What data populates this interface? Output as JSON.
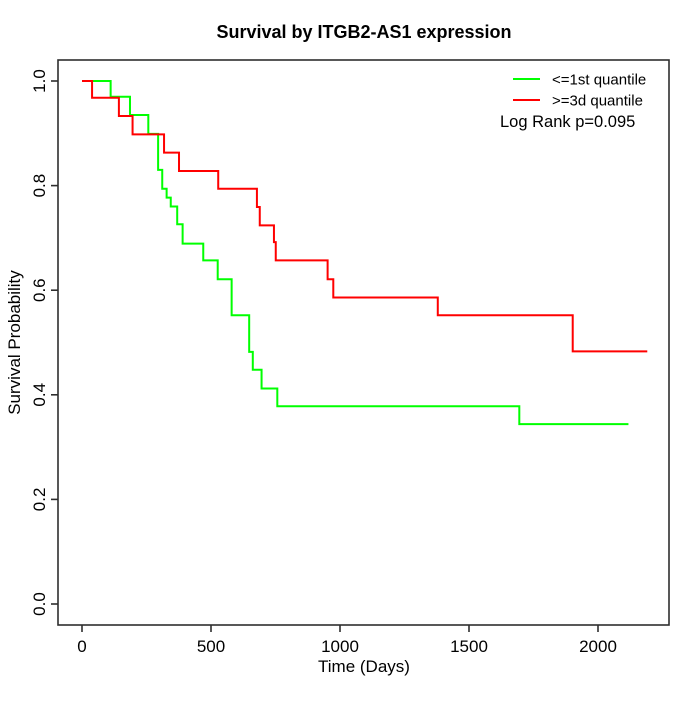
{
  "title": "Survival by ITGB2-AS1 expression",
  "x_axis": {
    "label": "Time (Days)",
    "tick_values": [
      0,
      500,
      1000,
      1500,
      2000
    ]
  },
  "y_axis": {
    "label": "Survival Probability",
    "tick_values": [
      "0.0",
      "0.2",
      "0.4",
      "0.6",
      "0.8",
      "1.0"
    ]
  },
  "legend": {
    "position": "topright",
    "entries": [
      {
        "label": "<=1st quantile",
        "color": "#00ff00"
      },
      {
        "label": ">=3d quantile",
        "color": "#ff0000"
      }
    ],
    "annotation": "Log Rank p=0.095"
  },
  "chart_data": {
    "type": "line",
    "subtype": "kaplan-meier-step",
    "title": "Survival by ITGB2-AS1 expression",
    "xlabel": "Time (Days)",
    "ylabel": "Survival Probability",
    "xlim": [
      0,
      2200
    ],
    "ylim": [
      0.0,
      1.0
    ],
    "grid": false,
    "legend_position": "topright",
    "annotation": "Log Rank p=0.095",
    "series": [
      {
        "name": "<=1st quantile",
        "color": "#00ff00",
        "step_points": [
          [
            0,
            1.0
          ],
          [
            111,
            0.97
          ],
          [
            186,
            0.935
          ],
          [
            257,
            0.899
          ],
          [
            295,
            0.83
          ],
          [
            311,
            0.794
          ],
          [
            328,
            0.777
          ],
          [
            344,
            0.76
          ],
          [
            369,
            0.726
          ],
          [
            390,
            0.689
          ],
          [
            470,
            0.657
          ],
          [
            526,
            0.621
          ],
          [
            580,
            0.552
          ],
          [
            648,
            0.482
          ],
          [
            662,
            0.448
          ],
          [
            696,
            0.412
          ],
          [
            757,
            0.378
          ],
          [
            1695,
            0.344
          ]
        ],
        "end_time": 2118
      },
      {
        "name": ">=3d quantile",
        "color": "#ff0000",
        "step_points": [
          [
            0,
            1.0
          ],
          [
            39,
            0.968
          ],
          [
            143,
            0.933
          ],
          [
            196,
            0.898
          ],
          [
            318,
            0.863
          ],
          [
            376,
            0.828
          ],
          [
            528,
            0.794
          ],
          [
            678,
            0.759
          ],
          [
            689,
            0.724
          ],
          [
            744,
            0.692
          ],
          [
            751,
            0.657
          ],
          [
            952,
            0.621
          ],
          [
            974,
            0.586
          ],
          [
            1379,
            0.552
          ],
          [
            1902,
            0.483
          ]
        ],
        "end_time": 2191
      }
    ]
  }
}
